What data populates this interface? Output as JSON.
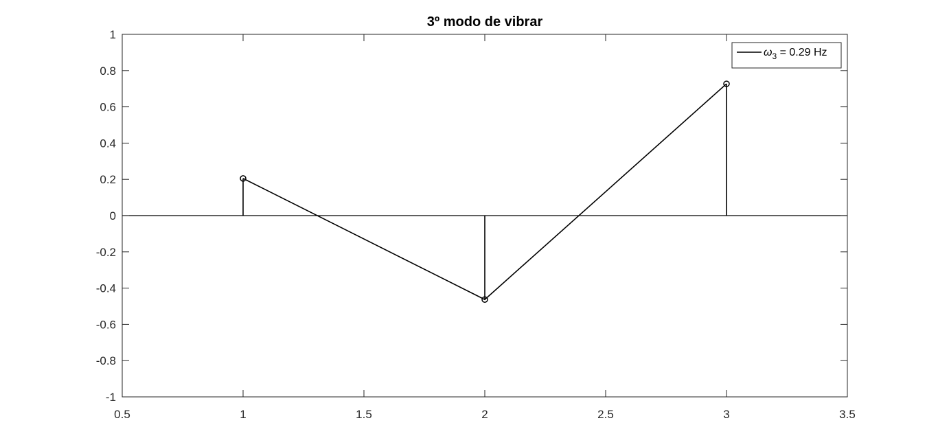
{
  "chart_data": {
    "type": "line",
    "title": "3º modo de vibrar",
    "xlabel": "",
    "ylabel": "",
    "xlim": [
      0.5,
      3.5
    ],
    "ylim": [
      -1,
      1
    ],
    "xticks": [
      0.5,
      1,
      1.5,
      2,
      2.5,
      3,
      3.5
    ],
    "xtick_labels": [
      "0.5",
      "1",
      "1.5",
      "2",
      "2.5",
      "3",
      "3.5"
    ],
    "yticks": [
      -1,
      -0.8,
      -0.6,
      -0.4,
      -0.2,
      0,
      0.2,
      0.4,
      0.6,
      0.8,
      1
    ],
    "ytick_labels": [
      "-1",
      "-0.8",
      "-0.6",
      "-0.4",
      "-0.2",
      "0",
      "0.2",
      "0.4",
      "0.6",
      "0.8",
      "1"
    ],
    "grid": false,
    "legend_position": "top-right",
    "baseline": 0,
    "series": [
      {
        "name": "ω3 = 0.29 Hz",
        "legend_symbol": "ω",
        "legend_subscript": "3",
        "legend_rest": " = 0.29 Hz",
        "style": "stem-with-line",
        "color": "#000000",
        "marker": "circle-open",
        "x": [
          1,
          2,
          3
        ],
        "y": [
          0.205,
          -0.463,
          0.727
        ]
      }
    ]
  }
}
